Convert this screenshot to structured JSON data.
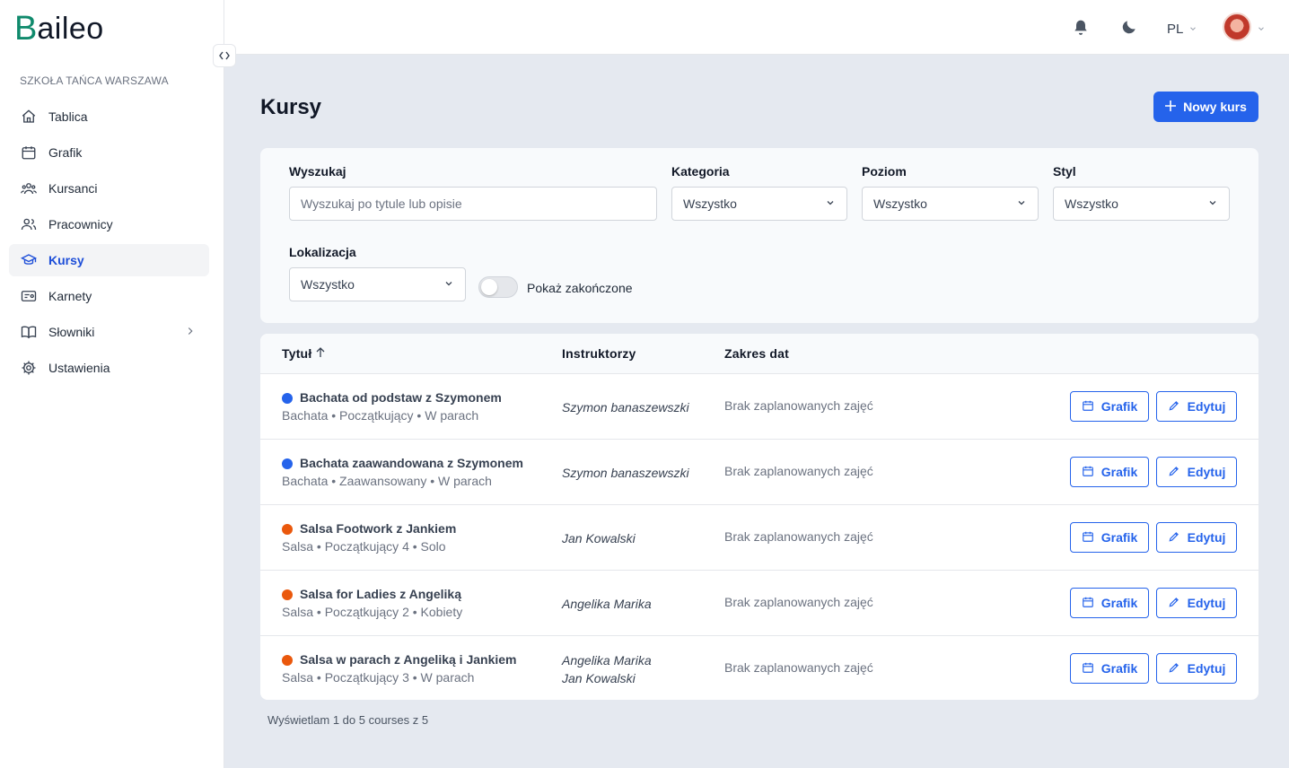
{
  "app": {
    "logo_b": "B",
    "logo_rest": "aileo"
  },
  "sidebar": {
    "org_name": "SZKOŁA TAŃCA WARSZAWA",
    "items": [
      {
        "label": "Tablica",
        "icon": "home-icon"
      },
      {
        "label": "Grafik",
        "icon": "calendar-icon"
      },
      {
        "label": "Kursanci",
        "icon": "users-icon"
      },
      {
        "label": "Pracownicy",
        "icon": "staff-icon"
      },
      {
        "label": "Kursy",
        "icon": "graduation-cap-icon",
        "active": true
      },
      {
        "label": "Karnety",
        "icon": "ticket-icon"
      },
      {
        "label": "Słowniki",
        "icon": "book-icon",
        "has_children": true
      },
      {
        "label": "Ustawienia",
        "icon": "gear-icon"
      }
    ]
  },
  "topbar": {
    "lang": "PL"
  },
  "page": {
    "title": "Kursy",
    "new_button": "Nowy kurs"
  },
  "filters": {
    "search_label": "Wyszukaj",
    "search_placeholder": "Wyszukaj po tytule lub opisie",
    "category_label": "Kategoria",
    "category_value": "Wszystko",
    "level_label": "Poziom",
    "level_value": "Wszystko",
    "style_label": "Styl",
    "style_value": "Wszystko",
    "location_label": "Lokalizacja",
    "location_value": "Wszystko",
    "show_finished_label": "Pokaż zakończone"
  },
  "table": {
    "headers": {
      "title": "Tytuł",
      "instructors": "Instruktorzy",
      "range": "Zakres dat"
    },
    "schedule_label": "Grafik",
    "edit_label": "Edytuj",
    "rows": [
      {
        "title": "Bachata od podstaw z Szymonem",
        "sub": "Bachata • Początkujący • W parach",
        "dot_color": "#2563eb",
        "instr1": "Szymon banaszewszki",
        "instr2": "",
        "range": "Brak zaplanowanych zajęć"
      },
      {
        "title": "Bachata zaawandowana z Szymonem",
        "sub": "Bachata • Zaawansowany • W parach",
        "dot_color": "#2563eb",
        "instr1": "Szymon banaszewszki",
        "instr2": "",
        "range": "Brak zaplanowanych zajęć"
      },
      {
        "title": "Salsa Footwork z Jankiem",
        "sub": "Salsa • Początkujący 4 • Solo",
        "dot_color": "#ea580c",
        "instr1": "Jan Kowalski",
        "instr2": "",
        "range": "Brak zaplanowanych zajęć"
      },
      {
        "title": "Salsa for Ladies z Angeliką",
        "sub": "Salsa • Początkujący 2 • Kobiety",
        "dot_color": "#ea580c",
        "instr1": "Angelika Marika",
        "instr2": "",
        "range": "Brak zaplanowanych zajęć"
      },
      {
        "title": "Salsa w parach z Angeliką i Jankiem",
        "sub": "Salsa • Początkujący 3 • W parach",
        "dot_color": "#ea580c",
        "instr1": "Angelika Marika",
        "instr2": "Jan Kowalski",
        "range": "Brak zaplanowanych zajęć"
      }
    ]
  },
  "footer": {
    "info": "Wyświetlam 1 do 5 courses z 5"
  }
}
